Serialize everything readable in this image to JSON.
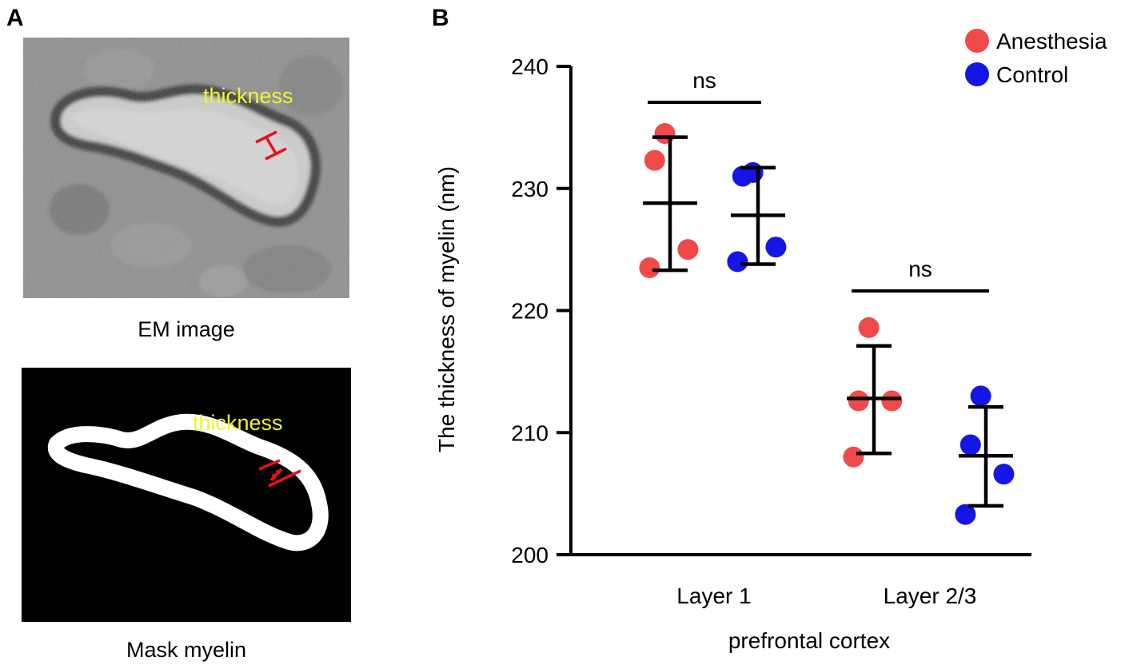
{
  "panels": {
    "a_label": "A",
    "b_label": "B"
  },
  "panel_a": {
    "em_caption": "EM image",
    "mask_caption": "Mask myelin",
    "em_annotation": "thickness",
    "mask_annotation": "thickness",
    "annotation_color": "#f5f233",
    "marker_color": "#e8101a"
  },
  "chart_data": {
    "type": "scatter",
    "title": "",
    "xlabel": "prefrontal cortex",
    "ylabel": "The thickness of myelin (nm)",
    "ylim": [
      200,
      240
    ],
    "yticks": [
      200,
      210,
      220,
      230,
      240
    ],
    "categories": [
      "Layer 1",
      "Layer 2/3"
    ],
    "series": [
      {
        "name": "Anesthesia",
        "color": "#f04a4a",
        "points": [
          [
            234.5,
            232.3,
            225.0,
            223.5
          ],
          [
            218.6,
            212.6,
            212.6,
            208.0
          ]
        ],
        "mean": [
          228.8,
          212.8
        ],
        "sd_upper": [
          234.2,
          217.1
        ],
        "sd_lower": [
          223.3,
          208.3
        ]
      },
      {
        "name": "Control",
        "color": "#1515e6",
        "points": [
          [
            231.0,
            231.3,
            225.2,
            224.0
          ],
          [
            213.0,
            209.0,
            206.6,
            203.3
          ]
        ],
        "mean": [
          227.8,
          208.1
        ],
        "sd_upper": [
          231.7,
          212.1
        ],
        "sd_lower": [
          223.8,
          204.0
        ]
      }
    ],
    "annotations": [
      {
        "text": "ns",
        "category": "Layer 1"
      },
      {
        "text": "ns",
        "category": "Layer 2/3"
      }
    ],
    "legend": "top-right"
  }
}
